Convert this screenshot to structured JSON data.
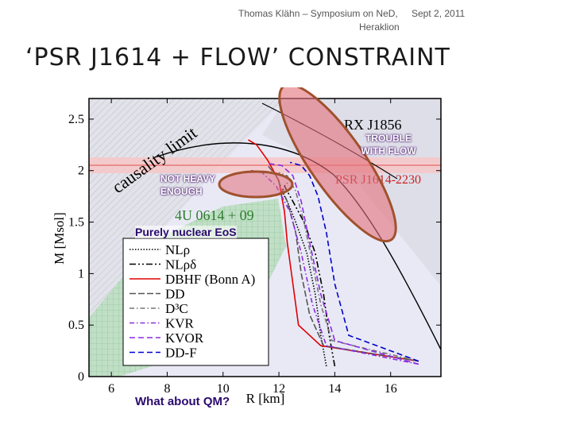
{
  "slide": {
    "header_author": "Thomas Klähn – Symposium on NeD,",
    "header_venue": "Heraklion",
    "header_date": "Sept 2, 2011",
    "title": "‘PSR J1614 + FLOW’ CONSTRAINT"
  },
  "annotations": {
    "trouble_line1": "TROUBLE",
    "trouble_line2": "WITH FLOW",
    "not_heavy_line1": "NOT HEAVY",
    "not_heavy_line2": "ENOUGH",
    "purely_nuclear": "Purely nuclear EoS",
    "qm": "What about QM?"
  },
  "chart_data": {
    "type": "line",
    "xlabel": "R [km]",
    "ylabel": "M [Msol]",
    "xlim": [
      5.2,
      17.8
    ],
    "ylim": [
      0,
      2.7
    ],
    "xticks": [
      6,
      8,
      10,
      12,
      14,
      16
    ],
    "yticks": [
      0,
      0.5,
      1,
      1.5,
      2,
      2.5
    ],
    "xtick_labels": [
      "6",
      "8",
      "10",
      "12",
      "14",
      "16"
    ],
    "ytick_labels": [
      "0",
      "0.5",
      "1",
      "1.5",
      "2",
      "2.5"
    ],
    "region_labels": [
      "causality limit",
      "RX J1856",
      "PSR J1614-2230",
      "4U 0614 + 09"
    ],
    "series": [
      {
        "name": "NLρ",
        "color": "#000000",
        "dash": "1.5,2",
        "x": [
          13.7,
          13.5,
          13.3,
          13.0,
          12.6,
          12.3,
          12.1,
          12.2
        ],
        "y": [
          0.1,
          0.4,
          0.8,
          1.2,
          1.5,
          1.7,
          1.8,
          1.83
        ]
      },
      {
        "name": "NLρδ",
        "color": "#000000",
        "dash": "8,3,2,3,2,3",
        "x": [
          14.0,
          13.8,
          13.6,
          13.3,
          12.9,
          12.5,
          12.2,
          12.3
        ],
        "y": [
          0.1,
          0.4,
          0.8,
          1.2,
          1.5,
          1.7,
          1.85,
          1.88
        ]
      },
      {
        "name": "DBHF (Bonn A)",
        "color": "#e00000",
        "dash": "",
        "x": [
          17.0,
          13.5,
          12.7,
          12.5,
          12.3,
          12.2,
          12.0,
          11.6,
          11.2,
          10.9
        ],
        "y": [
          0.15,
          0.3,
          0.5,
          0.9,
          1.3,
          1.6,
          1.9,
          2.1,
          2.25,
          2.3
        ]
      },
      {
        "name": "DD",
        "color": "#555555",
        "dash": "8,3",
        "x": [
          17.0,
          13.6,
          13.1,
          12.8,
          12.6,
          12.3,
          11.9,
          11.6
        ],
        "y": [
          0.15,
          0.3,
          0.6,
          1.0,
          1.4,
          1.7,
          1.95,
          2.05
        ]
      },
      {
        "name": "D³C",
        "color": "#777777",
        "dash": "6,3,1.5,3",
        "x": [
          17.0,
          13.9,
          13.5,
          13.2,
          12.9,
          12.6,
          12.3,
          12.0
        ],
        "y": [
          0.15,
          0.35,
          0.7,
          1.1,
          1.5,
          1.8,
          1.95,
          1.98
        ]
      },
      {
        "name": "KVR",
        "color": "#8a2be2",
        "dash": "6,3,1.5,3",
        "x": [
          17.0,
          13.7,
          13.2,
          12.8,
          12.4,
          11.9,
          11.4,
          11.0
        ],
        "y": [
          0.12,
          0.3,
          0.7,
          1.2,
          1.6,
          1.85,
          1.98,
          2.0
        ]
      },
      {
        "name": "KVOR",
        "color": "#8a2be2",
        "dash": "7,4",
        "x": [
          17.0,
          14.0,
          13.5,
          13.1,
          12.8,
          12.5,
          12.1,
          11.6
        ],
        "y": [
          0.12,
          0.35,
          0.8,
          1.3,
          1.7,
          1.95,
          2.05,
          2.07
        ]
      },
      {
        "name": "DD-F",
        "color": "#0000cc",
        "dash": "7,4",
        "x": [
          17.0,
          14.5,
          14.0,
          13.7,
          13.4,
          13.1,
          12.8,
          12.4
        ],
        "y": [
          0.15,
          0.4,
          0.9,
          1.4,
          1.75,
          1.95,
          2.05,
          2.08
        ]
      }
    ],
    "legend_position": "bottom-left",
    "grid": false
  },
  "colors": {
    "bg_plot": "#e9e9f6",
    "causality_hatch": "#999999",
    "green_region": "#8fcf8f",
    "pink_band": "#f7c7c7",
    "ellipse_fill": "#e26f7a",
    "ellipse_stroke": "#a0522d"
  }
}
